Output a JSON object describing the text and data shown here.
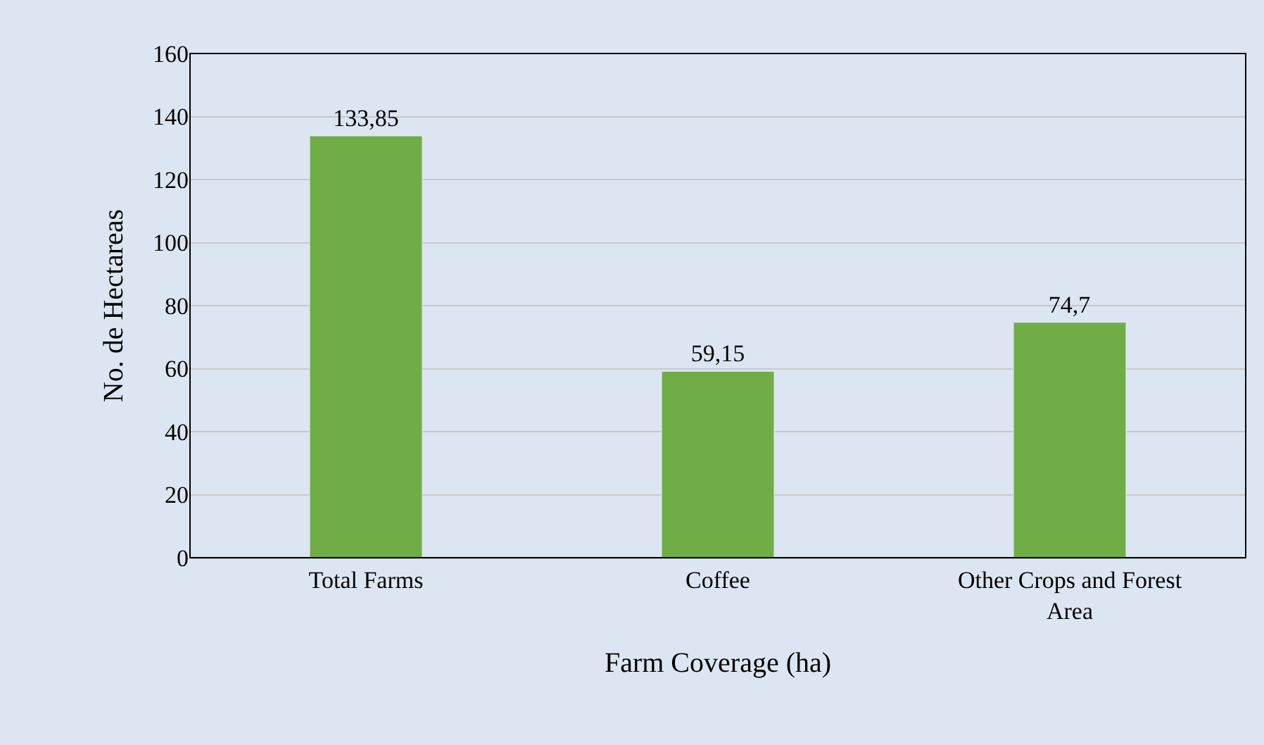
{
  "chart_data": {
    "type": "bar",
    "xlabel": "Farm Coverage (ha)",
    "ylabel": "No. de Hectareas",
    "categories": [
      "Total Farms",
      "Coffee",
      "Other Crops and Forest Area"
    ],
    "values": [
      133.85,
      59.15,
      74.7
    ],
    "value_labels": [
      "133,85",
      "59,15",
      "74,7"
    ],
    "color": "#70ad47",
    "ylim": [
      0,
      160
    ],
    "yticks": [
      0,
      20,
      40,
      60,
      80,
      100,
      120,
      140,
      160
    ],
    "grid": "y"
  }
}
